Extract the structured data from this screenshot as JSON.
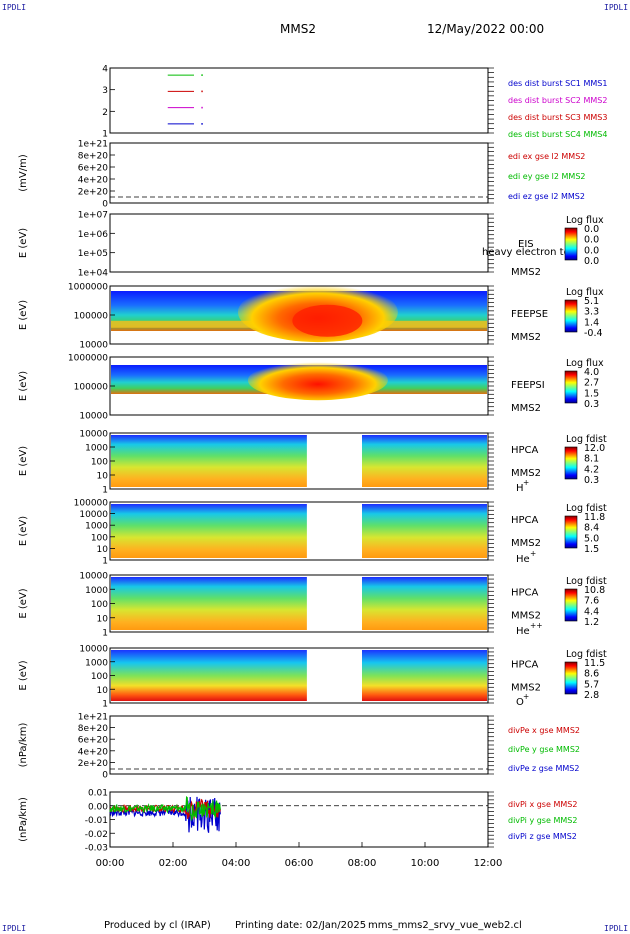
{
  "header": {
    "corner_label": "IPDLI",
    "title": "MMS2",
    "date": "12/May/2022 00:00"
  },
  "footer": {
    "credit": "Produced by cl (IRAP)",
    "printing": "Printing date: 02/Jan/2025",
    "file": "mms_mms2_srvy_vue_web2.cl"
  },
  "colors": {
    "mms1": "#0000cc",
    "mms2": "#cc00cc",
    "mms3": "#cc0000",
    "mms4": "#00bb00",
    "x": "#cc0000",
    "y": "#00bb00",
    "z": "#0000cc"
  },
  "chart_data": [
    {
      "type": "line",
      "name": "dist-burst",
      "yticks": [
        "4",
        "3",
        "2",
        "1"
      ],
      "series": [
        {
          "name": "des dist burst SC1 MMS1",
          "color": "#0000cc"
        },
        {
          "name": "des dist burst SC2 MMS2",
          "color": "#cc00cc"
        },
        {
          "name": "des dist burst SC3 MMS3",
          "color": "#cc0000"
        },
        {
          "name": "des dist burst SC4 MMS4",
          "color": "#00bb00"
        }
      ],
      "segments": [
        {
          "sc": 4,
          "start": "01:50",
          "end": "02:40"
        },
        {
          "sc": 3,
          "start": "01:50",
          "end": "02:40"
        },
        {
          "sc": 2,
          "start": "01:50",
          "end": "02:40"
        },
        {
          "sc": 1,
          "start": "01:50",
          "end": "02:40"
        }
      ]
    },
    {
      "type": "line",
      "name": "edi",
      "ylabel": "(mV/m)",
      "yticks": [
        "1e+21",
        "8e+20",
        "6e+20",
        "4e+20",
        "2e+20",
        "0"
      ],
      "series": [
        {
          "name": "edi ex gse l2 MMS2",
          "color": "#cc0000"
        },
        {
          "name": "edi ey gse l2 MMS2",
          "color": "#00bb00"
        },
        {
          "name": "edi ez gse l2 MMS2",
          "color": "#0000cc"
        }
      ]
    },
    {
      "type": "heatmap",
      "name": "eis",
      "ylabel": "E (eV)",
      "yticks": [
        "1e+07",
        "1e+06",
        "1e+05",
        "1e+04"
      ],
      "instrument": "EIS",
      "spacecraft": "MMS2",
      "note": "heavy electron tof",
      "cbar_title": "Log flux",
      "cbar_ticks": [
        "0.0",
        "0.0",
        "0.0",
        "0.0"
      ]
    },
    {
      "type": "heatmap",
      "name": "feepse",
      "ylabel": "E (eV)",
      "yticks": [
        "1000000",
        "100000",
        "10000"
      ],
      "instrument": "FEEPSE",
      "spacecraft": "MMS2",
      "cbar_title": "Log flux",
      "cbar_ticks": [
        "5.1",
        "3.3",
        "1.4",
        "-0.4"
      ]
    },
    {
      "type": "heatmap",
      "name": "feepsi",
      "ylabel": "E (eV)",
      "yticks": [
        "1000000",
        "100000",
        "10000"
      ],
      "instrument": "FEEPSI",
      "spacecraft": "MMS2",
      "cbar_title": "Log flux",
      "cbar_ticks": [
        "4.0",
        "2.7",
        "1.5",
        "0.3"
      ]
    },
    {
      "type": "heatmap",
      "name": "hpca-h",
      "ylabel": "E (eV)",
      "yticks": [
        "10000",
        "1000",
        "100",
        "10",
        "1"
      ],
      "instrument": "HPCA",
      "spacecraft": "MMS2",
      "species": "H",
      "charge": "+",
      "cbar_title": "Log fdist",
      "cbar_ticks": [
        "12.0",
        "8.1",
        "4.2",
        "0.3"
      ]
    },
    {
      "type": "heatmap",
      "name": "hpca-he",
      "ylabel": "E (eV)",
      "yticks": [
        "100000",
        "10000",
        "1000",
        "100",
        "10",
        "1"
      ],
      "instrument": "HPCA",
      "spacecraft": "MMS2",
      "species": "He",
      "charge": "+",
      "cbar_title": "Log fdist",
      "cbar_ticks": [
        "11.8",
        "8.4",
        "5.0",
        "1.5"
      ]
    },
    {
      "type": "heatmap",
      "name": "hpca-he2",
      "ylabel": "E (eV)",
      "yticks": [
        "10000",
        "1000",
        "100",
        "10",
        "1"
      ],
      "instrument": "HPCA",
      "spacecraft": "MMS2",
      "species": "He",
      "charge": "++",
      "cbar_title": "Log fdist",
      "cbar_ticks": [
        "10.8",
        "7.6",
        "4.4",
        "1.2"
      ]
    },
    {
      "type": "heatmap",
      "name": "hpca-o",
      "ylabel": "E (eV)",
      "yticks": [
        "10000",
        "1000",
        "100",
        "10",
        "1"
      ],
      "instrument": "HPCA",
      "spacecraft": "MMS2",
      "species": "O",
      "charge": "+",
      "cbar_title": "Log fdist",
      "cbar_ticks": [
        "11.5",
        "8.6",
        "5.7",
        "2.8"
      ]
    },
    {
      "type": "line",
      "name": "divpe",
      "ylabel": "(nPa/km)",
      "yticks": [
        "1e+21",
        "8e+20",
        "6e+20",
        "4e+20",
        "2e+20",
        "0"
      ],
      "series": [
        {
          "name": "divPe x gse MMS2",
          "color": "#cc0000"
        },
        {
          "name": "divPe y gse MMS2",
          "color": "#00bb00"
        },
        {
          "name": "divPe z gse MMS2",
          "color": "#0000cc"
        }
      ]
    },
    {
      "type": "line",
      "name": "divpi",
      "ylabel": "(nPa/km)",
      "yticks": [
        "0.01",
        "0.00",
        "-0.01",
        "-0.02",
        "-0.03"
      ],
      "series": [
        {
          "name": "divPi x gse MMS2",
          "color": "#cc0000"
        },
        {
          "name": "divPi y gse MMS2",
          "color": "#00bb00"
        },
        {
          "name": "divPi z gse MMS2",
          "color": "#0000cc"
        }
      ]
    }
  ],
  "time_axis": {
    "ticks": [
      "00:00",
      "02:00",
      "04:00",
      "06:00",
      "08:00",
      "10:00",
      "12:00"
    ],
    "data_gap": [
      "06:15",
      "08:00"
    ]
  }
}
